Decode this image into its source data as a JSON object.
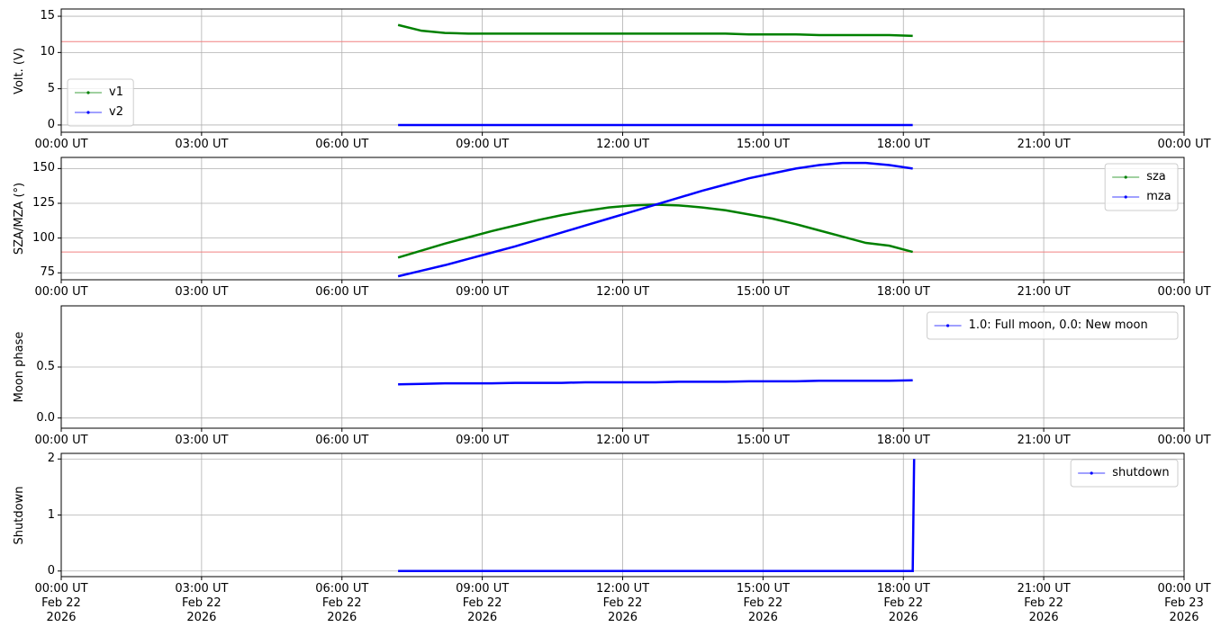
{
  "chart_data": [
    {
      "type": "line",
      "ylabel": "Volt. (V)",
      "legend": "lower left",
      "grid": true,
      "xlim": [
        0,
        24
      ],
      "ylim": [
        -1,
        16
      ],
      "yticks": [
        0,
        5,
        10,
        15
      ],
      "xticks": [
        {
          "value": 0,
          "label": "00:00 UT"
        },
        {
          "value": 3,
          "label": "03:00 UT"
        },
        {
          "value": 6,
          "label": "06:00 UT"
        },
        {
          "value": 9,
          "label": "09:00 UT"
        },
        {
          "value": 12,
          "label": "12:00 UT"
        },
        {
          "value": 15,
          "label": "15:00 UT"
        },
        {
          "value": 18,
          "label": "18:00 UT"
        },
        {
          "value": 21,
          "label": "21:00 UT"
        },
        {
          "value": 24,
          "label": "00:00 UT"
        }
      ],
      "hline": {
        "value": 11.5,
        "color": "#f08080"
      },
      "x": [
        7.2,
        7.7,
        8.2,
        8.7,
        9.2,
        9.7,
        10.2,
        10.7,
        11.2,
        11.7,
        12.2,
        12.7,
        13.2,
        13.7,
        14.2,
        14.7,
        15.2,
        15.7,
        16.2,
        16.7,
        17.2,
        17.7,
        18.2
      ],
      "series": [
        {
          "name": "v1",
          "color": "#008000",
          "values": [
            13.8,
            13.0,
            12.7,
            12.6,
            12.6,
            12.6,
            12.6,
            12.6,
            12.6,
            12.6,
            12.6,
            12.6,
            12.6,
            12.6,
            12.6,
            12.5,
            12.5,
            12.5,
            12.4,
            12.4,
            12.4,
            12.4,
            12.3
          ]
        },
        {
          "name": "v2",
          "color": "#0000ff",
          "values": [
            0,
            0,
            0,
            0,
            0,
            0,
            0,
            0,
            0,
            0,
            0,
            0,
            0,
            0,
            0,
            0,
            0,
            0,
            0,
            0,
            0,
            0,
            0
          ]
        }
      ]
    },
    {
      "type": "line",
      "ylabel": "SZA/MZA (°)",
      "legend": "upper right",
      "grid": true,
      "xlim": [
        0,
        24
      ],
      "ylim": [
        70,
        158
      ],
      "yticks": [
        75,
        100,
        125,
        150
      ],
      "xticks": [
        {
          "value": 0,
          "label": "00:00 UT"
        },
        {
          "value": 3,
          "label": "03:00 UT"
        },
        {
          "value": 6,
          "label": "06:00 UT"
        },
        {
          "value": 9,
          "label": "09:00 UT"
        },
        {
          "value": 12,
          "label": "12:00 UT"
        },
        {
          "value": 15,
          "label": "15:00 UT"
        },
        {
          "value": 18,
          "label": "18:00 UT"
        },
        {
          "value": 21,
          "label": "21:00 UT"
        },
        {
          "value": 24,
          "label": "00:00 UT"
        }
      ],
      "hline": {
        "value": 90,
        "color": "#f08080"
      },
      "x": [
        7.2,
        7.7,
        8.2,
        8.7,
        9.2,
        9.7,
        10.2,
        10.7,
        11.2,
        11.7,
        12.2,
        12.7,
        13.2,
        13.7,
        14.2,
        14.7,
        15.2,
        15.7,
        16.2,
        16.7,
        17.2,
        17.7,
        18.2
      ],
      "series": [
        {
          "name": "sza",
          "color": "#008000",
          "values": [
            86,
            91,
            96,
            100.5,
            105,
            109,
            113,
            116.5,
            119.5,
            122,
            123.5,
            124,
            123.5,
            122,
            120,
            117,
            114,
            110,
            105.5,
            101,
            96.5,
            94.5,
            90
          ]
        },
        {
          "name": "mza",
          "color": "#0000ff",
          "values": [
            72.5,
            76.5,
            80.5,
            85,
            89.5,
            94,
            99,
            104,
            109,
            114,
            119,
            124,
            129,
            134,
            138.5,
            143,
            146.5,
            150,
            152.5,
            154,
            154,
            152.5,
            150
          ]
        }
      ]
    },
    {
      "type": "line",
      "ylabel": "Moon phase",
      "legend": "upper right",
      "grid": true,
      "xlim": [
        0,
        24
      ],
      "ylim": [
        -0.1,
        1.1
      ],
      "yticks": [
        {
          "value": 0,
          "label": "0.0"
        },
        0.5
      ],
      "xticks": [
        {
          "value": 0,
          "label": "00:00 UT"
        },
        {
          "value": 3,
          "label": "03:00 UT"
        },
        {
          "value": 6,
          "label": "06:00 UT"
        },
        {
          "value": 9,
          "label": "09:00 UT"
        },
        {
          "value": 12,
          "label": "12:00 UT"
        },
        {
          "value": 15,
          "label": "15:00 UT"
        },
        {
          "value": 18,
          "label": "18:00 UT"
        },
        {
          "value": 21,
          "label": "21:00 UT"
        },
        {
          "value": 24,
          "label": "00:00 UT"
        }
      ],
      "x": [
        7.2,
        7.7,
        8.2,
        8.7,
        9.2,
        9.7,
        10.2,
        10.7,
        11.2,
        11.7,
        12.2,
        12.7,
        13.2,
        13.7,
        14.2,
        14.7,
        15.2,
        15.7,
        16.2,
        16.7,
        17.2,
        17.7,
        18.2
      ],
      "series": [
        {
          "name": "1.0: Full moon, 0.0: New moon",
          "color": "#0000ff",
          "values": [
            0.33,
            0.335,
            0.34,
            0.34,
            0.34,
            0.345,
            0.345,
            0.345,
            0.35,
            0.35,
            0.35,
            0.35,
            0.355,
            0.355,
            0.355,
            0.36,
            0.36,
            0.36,
            0.365,
            0.365,
            0.365,
            0.365,
            0.37
          ]
        }
      ]
    },
    {
      "type": "line",
      "ylabel": "Shutdown",
      "legend": "upper right",
      "grid": true,
      "xlim": [
        0,
        24
      ],
      "ylim": [
        -0.1,
        2.1
      ],
      "yticks": [
        0,
        1,
        2
      ],
      "xticks": [
        {
          "value": 0,
          "label": "00:00 UT\nFeb 22\n2026"
        },
        {
          "value": 3,
          "label": "03:00 UT\nFeb 22\n2026"
        },
        {
          "value": 6,
          "label": "06:00 UT\nFeb 22\n2026"
        },
        {
          "value": 9,
          "label": "09:00 UT\nFeb 22\n2026"
        },
        {
          "value": 12,
          "label": "12:00 UT\nFeb 22\n2026"
        },
        {
          "value": 15,
          "label": "15:00 UT\nFeb 22\n2026"
        },
        {
          "value": 18,
          "label": "18:00 UT\nFeb 22\n2026"
        },
        {
          "value": 21,
          "label": "21:00 UT\nFeb 22\n2026"
        },
        {
          "value": 24,
          "label": "00:00 UT\nFeb 23\n2026"
        }
      ],
      "x": [
        7.2,
        7.7,
        8.2,
        8.7,
        9.2,
        9.7,
        10.2,
        10.7,
        11.2,
        11.7,
        12.2,
        12.7,
        13.2,
        13.7,
        14.2,
        14.7,
        15.2,
        15.7,
        16.2,
        16.7,
        17.2,
        17.7,
        18.2,
        18.23
      ],
      "series": [
        {
          "name": "shutdown",
          "color": "#0000ff",
          "values": [
            0,
            0,
            0,
            0,
            0,
            0,
            0,
            0,
            0,
            0,
            0,
            0,
            0,
            0,
            0,
            0,
            0,
            0,
            0,
            0,
            0,
            0,
            0,
            2
          ]
        }
      ]
    }
  ]
}
